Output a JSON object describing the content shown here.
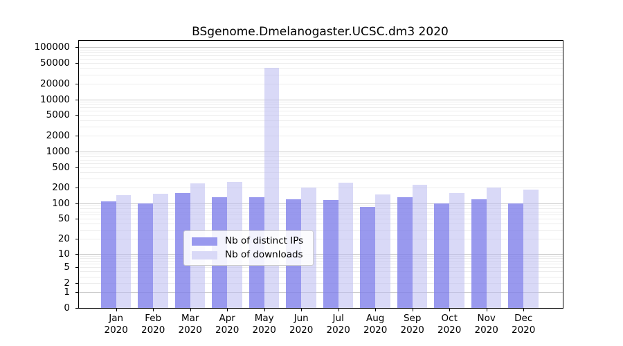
{
  "title": "BSgenome.Dmelanogaster.UCSC.dm3 2020",
  "chart_data": {
    "type": "bar",
    "title": "BSgenome.Dmelanogaster.UCSC.dm3 2020",
    "xlabel": "",
    "ylabel": "",
    "scale": "log10(1+x)",
    "grid": true,
    "legend_position": "inside-bottom-center",
    "year": "2020",
    "categories": [
      "Jan",
      "Feb",
      "Mar",
      "Apr",
      "May",
      "Jun",
      "Jul",
      "Aug",
      "Sep",
      "Oct",
      "Nov",
      "Dec"
    ],
    "series": [
      {
        "name": "Nb of distinct IPs",
        "color": "#9999ee",
        "values": [
          110,
          100,
          160,
          130,
          130,
          120,
          115,
          85,
          130,
          100,
          120,
          100
        ]
      },
      {
        "name": "Nb of downloads",
        "color": "#d9d9f7",
        "values": [
          145,
          155,
          240,
          260,
          40000,
          205,
          250,
          150,
          230,
          160,
          205,
          185
        ]
      }
    ],
    "yticks": [
      100000,
      50000,
      20000,
      10000,
      5000,
      2000,
      1000,
      500,
      200,
      100,
      50,
      20,
      10,
      5,
      2,
      1,
      0
    ],
    "ylim": [
      0,
      133000
    ]
  },
  "legend": {
    "items": [
      {
        "label": "Nb of distinct IPs",
        "color": "#9999ee"
      },
      {
        "label": "Nb of downloads",
        "color": "#d9d9f7"
      }
    ]
  },
  "colors": {
    "bar_ips": "#9999ee",
    "bar_downloads": "#d9d9f7",
    "grid_major": "#c9c9c9",
    "grid_minor": "#ececec",
    "axis": "#000000",
    "background": "#ffffff"
  }
}
